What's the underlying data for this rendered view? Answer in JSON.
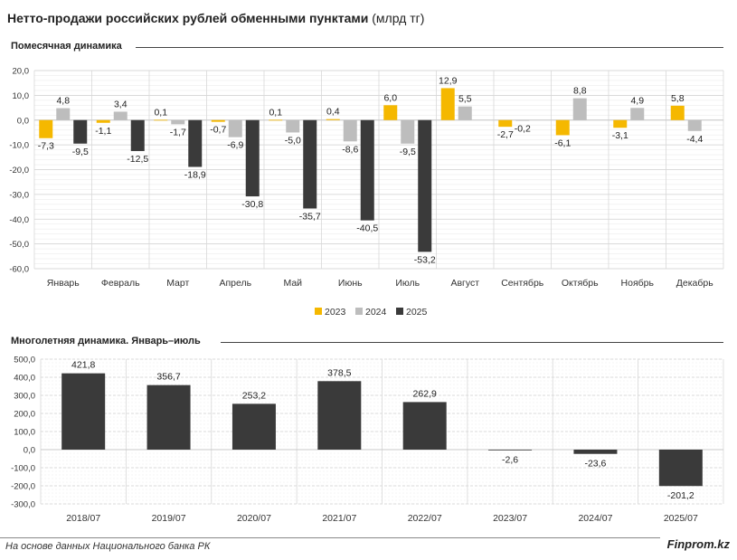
{
  "header": {
    "title": "Нетто-продажи российских рублей обменными пунктами",
    "unit": "(млрд тг)"
  },
  "footer": {
    "source": "На основе данных Национального банка РК",
    "brand": "Finprom.kz"
  },
  "colors": {
    "s2023": "#f5b800",
    "s2024": "#bdbdbd",
    "s2025": "#3a3a3a",
    "bar": "#3a3a3a"
  },
  "chart_data": [
    {
      "type": "bar",
      "title": "Помесячная динамика",
      "categories": [
        "Январь",
        "Февраль",
        "Март",
        "Апрель",
        "Май",
        "Июнь",
        "Июль",
        "Август",
        "Сентябрь",
        "Октябрь",
        "Ноябрь",
        "Декабрь"
      ],
      "series": [
        {
          "name": "2023",
          "values": [
            -7.3,
            -1.1,
            0.1,
            -0.7,
            0.1,
            0.4,
            6.0,
            12.9,
            -2.7,
            -6.1,
            -3.1,
            5.8
          ]
        },
        {
          "name": "2024",
          "values": [
            4.8,
            3.4,
            -1.7,
            -6.9,
            -5.0,
            -8.6,
            -9.5,
            5.5,
            -0.2,
            8.8,
            4.9,
            -4.4
          ]
        },
        {
          "name": "2025",
          "values": [
            -9.5,
            -12.5,
            -18.9,
            -30.8,
            -35.7,
            -40.5,
            -53.2,
            null,
            null,
            null,
            null,
            null
          ]
        }
      ],
      "data_labels": [
        [
          "-7,3",
          "-1,1",
          "0,1",
          "-0,7",
          "0,1",
          "0,4",
          "6,0",
          "12,9",
          "-2,7",
          "-6,1",
          "-3,1",
          "5,8"
        ],
        [
          "4,8",
          "3,4",
          "-1,7",
          "-6,9",
          "-5,0",
          "-8,6",
          "-9,5",
          "5,5",
          "-0,2",
          "8,8",
          "4,9",
          "-4,4"
        ],
        [
          "-9,5",
          "-12,5",
          "-18,9",
          "-30,8",
          "-35,7",
          "-40,5",
          "-53,2",
          "",
          "",
          "",
          "",
          ""
        ]
      ],
      "ylim": [
        -60,
        20
      ],
      "yticks": [
        20,
        10,
        0,
        -10,
        -20,
        -30,
        -40,
        -50,
        -60
      ],
      "ytick_labels": [
        "20,0",
        "10,0",
        "0,0",
        "-10,0",
        "-20,0",
        "-30,0",
        "-40,0",
        "-50,0",
        "-60,0"
      ],
      "grid": true,
      "legend": "bottom-center"
    },
    {
      "type": "bar",
      "title": "Многолетняя динамика. Январь–июль",
      "categories": [
        "2018/07",
        "2019/07",
        "2020/07",
        "2021/07",
        "2022/07",
        "2023/07",
        "2024/07",
        "2025/07"
      ],
      "values": [
        421.8,
        356.7,
        253.2,
        378.5,
        262.9,
        -2.6,
        -23.6,
        -201.2
      ],
      "data_labels": [
        "421,8",
        "356,7",
        "253,2",
        "378,5",
        "262,9",
        "-2,6",
        "-23,6",
        "-201,2"
      ],
      "ylim": [
        -300,
        500
      ],
      "yticks": [
        500,
        400,
        300,
        200,
        100,
        0,
        -100,
        -200,
        -300
      ],
      "ytick_labels": [
        "500,0",
        "400,0",
        "300,0",
        "200,0",
        "100,0",
        "0,0",
        "-100,0",
        "-200,0",
        "-300,0"
      ],
      "grid": true
    }
  ]
}
